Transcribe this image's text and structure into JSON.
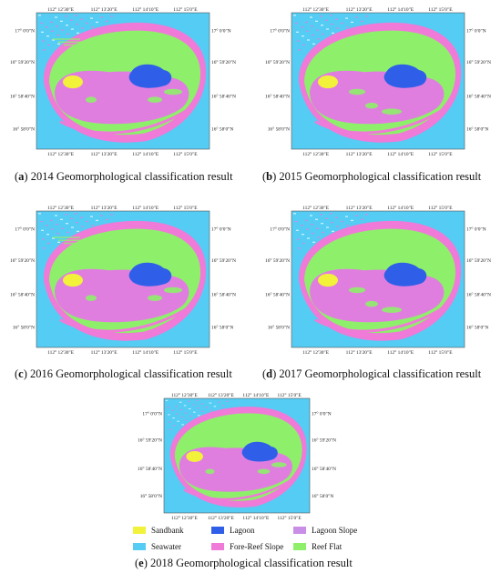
{
  "panels": [
    {
      "letter": "a",
      "title": " 2014 Geomorphological classification result"
    },
    {
      "letter": "b",
      "title": " 2015 Geomorphological classification result"
    },
    {
      "letter": "c",
      "title": " 2016 Geomorphological classification result"
    },
    {
      "letter": "d",
      "title": " 2017 Geomorphological classification result"
    },
    {
      "letter": "e",
      "title": " 2018 Geomorphological classification result"
    }
  ],
  "axes": {
    "lon_top": [
      "112° 12′30″E",
      "112° 13′20″E",
      "112° 14′10″E",
      "112° 15′0″E"
    ],
    "lon_bottom": [
      "112° 12′30″E",
      "112° 13′20″E",
      "112° 14′10″E",
      "112° 15′0″E"
    ],
    "lat": [
      "17° 0′0″N",
      "16° 59′20″N",
      "16° 58′40″N",
      "16° 58′0″N"
    ]
  },
  "legend": [
    {
      "label": "Sandbank",
      "color": "#f2f23a"
    },
    {
      "label": "Lagoon",
      "color": "#2f5fe8"
    },
    {
      "label": "Lagoon Slope",
      "color": "#c98ee6"
    },
    {
      "label": "Seawater",
      "color": "#55ccf4"
    },
    {
      "label": "Fore-Reef Slope",
      "color": "#ef7ad8"
    },
    {
      "label": "Reef Flat",
      "color": "#8ef06a"
    }
  ]
}
